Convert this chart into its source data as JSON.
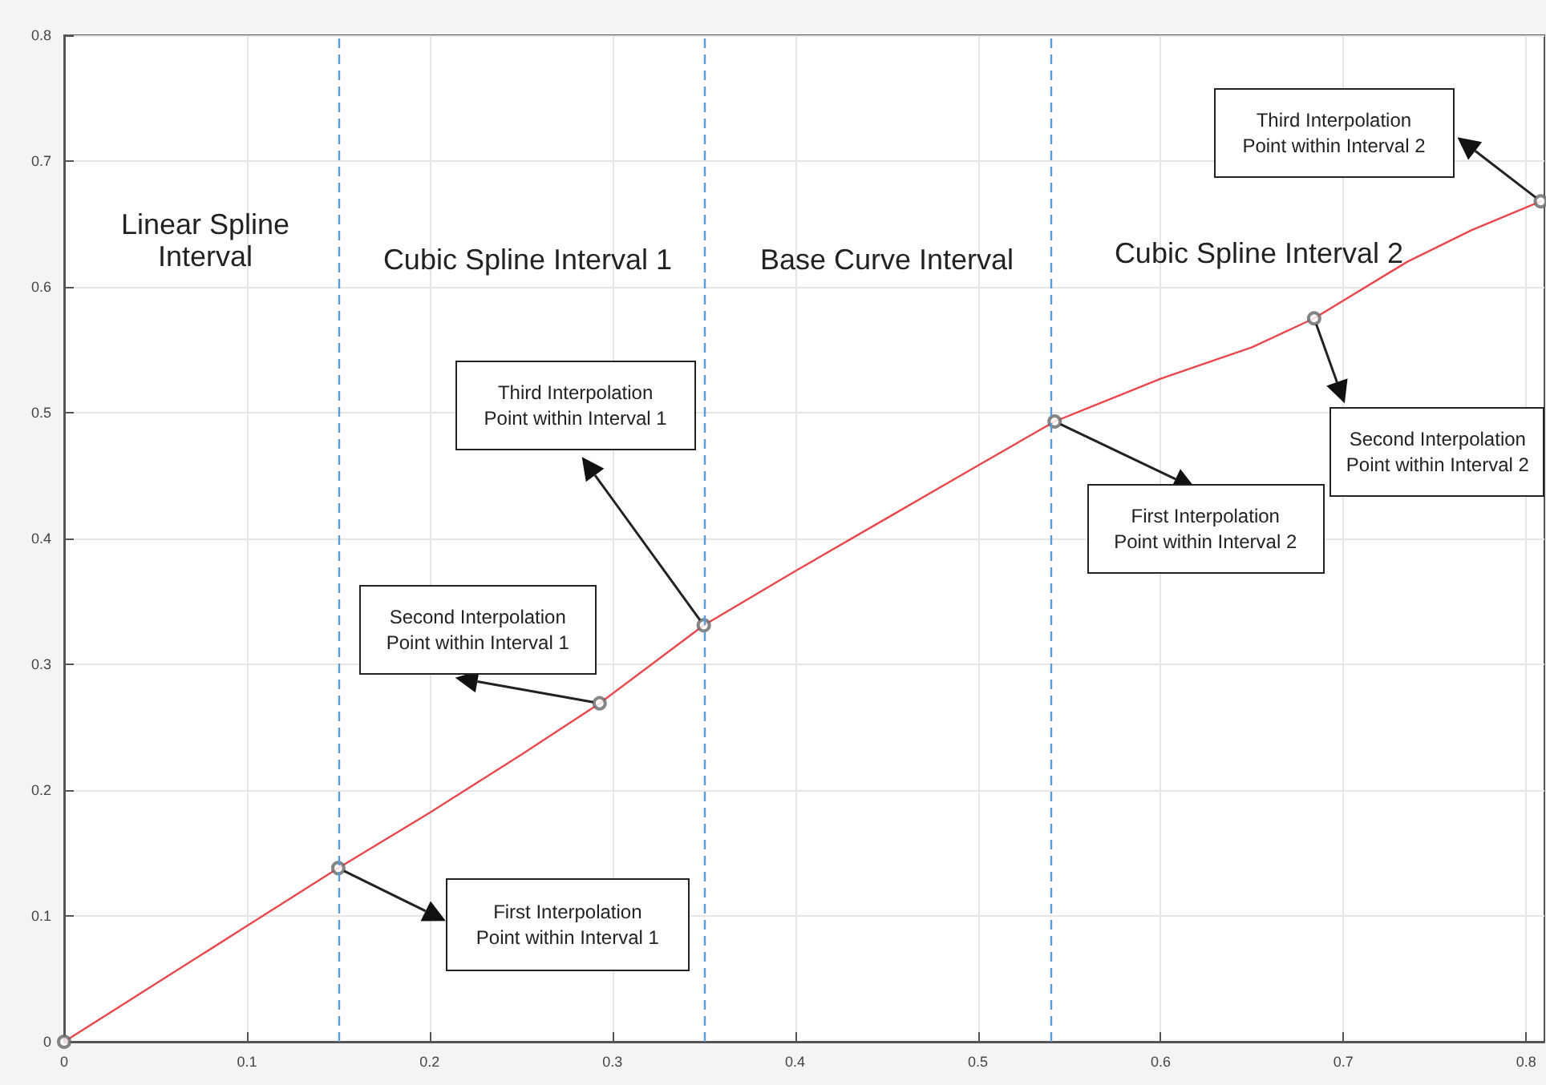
{
  "chart_data": {
    "type": "line",
    "xlim": [
      0,
      0.81
    ],
    "xticks": [
      0,
      0.1,
      0.2,
      0.3,
      0.4,
      0.5,
      0.6,
      0.7,
      0.8
    ],
    "ylim": [
      0,
      0.8
    ],
    "yticks": [
      0,
      0.1,
      0.2,
      0.3,
      0.4,
      0.5,
      0.6,
      0.7,
      0.8
    ],
    "grid": true,
    "series": [
      {
        "color": "#e8474b",
        "marker": "none",
        "x": [
          0,
          0.05,
          0.1,
          0.15,
          0.2,
          0.25,
          0.293,
          0.35,
          0.4,
          0.45,
          0.5,
          0.542,
          0.6,
          0.65,
          0.684,
          0.735,
          0.77,
          0.808
        ],
        "values": [
          0,
          0.046,
          0.092,
          0.138,
          0.182,
          0.228,
          0.269,
          0.331,
          0.374,
          0.416,
          0.458,
          0.493,
          0.527,
          0.552,
          0.575,
          0.62,
          0.645,
          0.668
        ]
      },
      {
        "type": "scatter",
        "color": "#666666",
        "marker": "circle",
        "x": [
          0,
          0.15,
          0.293,
          0.35,
          0.542,
          0.684,
          0.808
        ],
        "values": [
          0,
          0.138,
          0.269,
          0.331,
          0.493,
          0.575,
          0.668
        ]
      }
    ],
    "ref_lines": [
      {
        "axis": "x",
        "value": 0.15,
        "color": "#5b9bd5",
        "line_style": "dashed"
      },
      {
        "axis": "x",
        "value": 0.35,
        "color": "#5b9bd5",
        "line_style": "dashed"
      },
      {
        "axis": "x",
        "value": 0.542,
        "color": "#5b9bd5",
        "line_style": "dashed"
      }
    ],
    "annotations": [
      "Linear Spline Interval",
      "Cubic Spline Interval 1",
      "Base Curve Interval",
      "Cubic Spline Interval 2",
      "First Interpolation Point within Interval 1",
      "Second Interpolation Point within Interval 1",
      "Third Interpolation Point within Interval 1",
      "First Interpolation Point within Interval 2",
      "Second Interpolation Point within Interval 2",
      "Third Interpolation Point within Interval 2"
    ]
  }
}
